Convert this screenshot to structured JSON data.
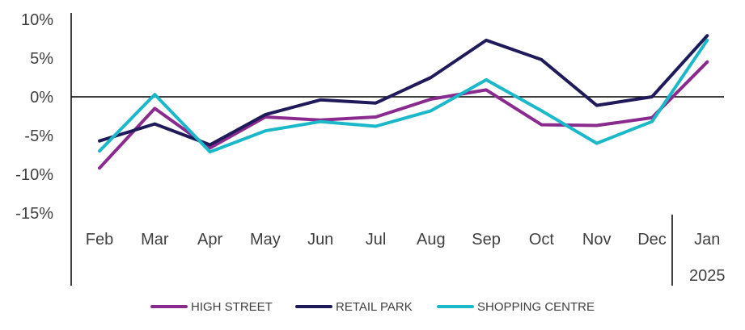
{
  "chart_data": {
    "type": "line",
    "categories": [
      "Feb",
      "Mar",
      "Apr",
      "May",
      "Jun",
      "Jul",
      "Aug",
      "Sep",
      "Oct",
      "Nov",
      "Dec",
      "Jan"
    ],
    "year_label": "2025",
    "ylim": [
      -15,
      10
    ],
    "yticks": [
      10,
      5,
      0,
      -5,
      -10,
      -15
    ],
    "ytick_labels": [
      "10%",
      "5%",
      "0%",
      "-5%",
      "-10%",
      "-15%"
    ],
    "legend_position": "bottom",
    "series": [
      {
        "name": "HIGH STREET",
        "color": "#8a2a8f",
        "values": [
          -9.2,
          -1.5,
          -6.6,
          -2.6,
          -3.0,
          -2.6,
          -0.3,
          0.9,
          -3.6,
          -3.7,
          -2.7,
          4.5
        ]
      },
      {
        "name": "RETAIL PARK",
        "color": "#1f1a5a",
        "values": [
          -5.7,
          -3.5,
          -6.2,
          -2.3,
          -0.4,
          -0.8,
          2.5,
          7.3,
          4.8,
          -1.1,
          0.0,
          7.9
        ]
      },
      {
        "name": "SHOPPING CENTRE",
        "color": "#1bb8c9",
        "values": [
          -7.0,
          0.3,
          -7.1,
          -4.4,
          -3.2,
          -3.8,
          -1.8,
          2.2,
          -1.8,
          -6.0,
          -3.2,
          7.3
        ]
      }
    ]
  }
}
